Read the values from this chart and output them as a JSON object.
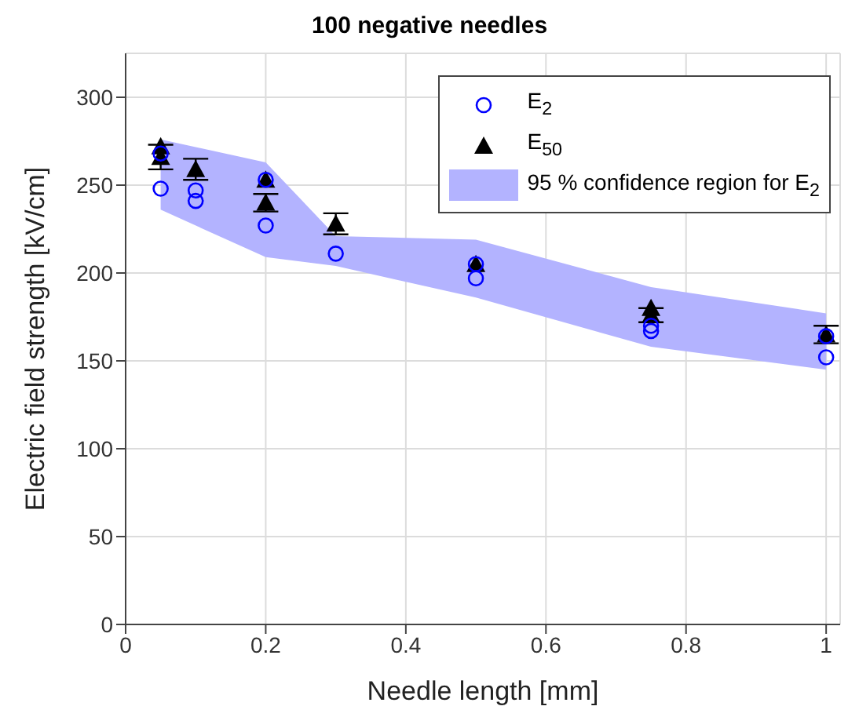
{
  "chart_data": {
    "type": "scatter",
    "title": "100 negative needles",
    "xlabel": "Needle length [mm]",
    "ylabel": "Electric field strength [kV/cm]",
    "xlim": [
      0,
      1.02
    ],
    "xticks": [
      0,
      0.2,
      0.4,
      0.6,
      0.8,
      1
    ],
    "ylim": [
      0,
      325
    ],
    "yticks": [
      0,
      50,
      100,
      150,
      200,
      250,
      300
    ],
    "grid": true,
    "legend": "top right",
    "series": [
      {
        "name": "E$_{2}$",
        "marker": "circle",
        "color": "#0000ff",
        "x": [
          0.05,
          0.05,
          0.1,
          0.1,
          0.2,
          0.2,
          0.3,
          0.5,
          0.5,
          0.75,
          0.75,
          1,
          1
        ],
        "values": [
          248,
          268,
          247,
          241,
          227,
          253,
          211,
          197,
          205,
          170,
          167,
          152,
          164
        ]
      },
      {
        "name": "E$_{50}$",
        "marker": "triangle",
        "color": "#000000",
        "x": [
          0.05,
          0.05,
          0.1,
          0.2,
          0.2,
          0.3,
          0.5,
          0.75,
          0.75,
          1
        ],
        "values": [
          272,
          266,
          259,
          253,
          240,
          228,
          205,
          180,
          176,
          165
        ],
        "errors": [
          null,
          7,
          6,
          null,
          5,
          6,
          null,
          null,
          4,
          5
        ]
      },
      {
        "name": "95 % confidence region for E$_{2}$",
        "type": "area",
        "color": "#b3b3ff",
        "x": [
          0.05,
          0.2,
          0.3,
          0.5,
          0.75,
          1
        ],
        "values": [
          null,
          null,
          null,
          null,
          null,
          null
        ],
        "lower": [
          236,
          209,
          204,
          186,
          158,
          145
        ],
        "upper": [
          276,
          263,
          221,
          219,
          192,
          177
        ]
      }
    ]
  }
}
